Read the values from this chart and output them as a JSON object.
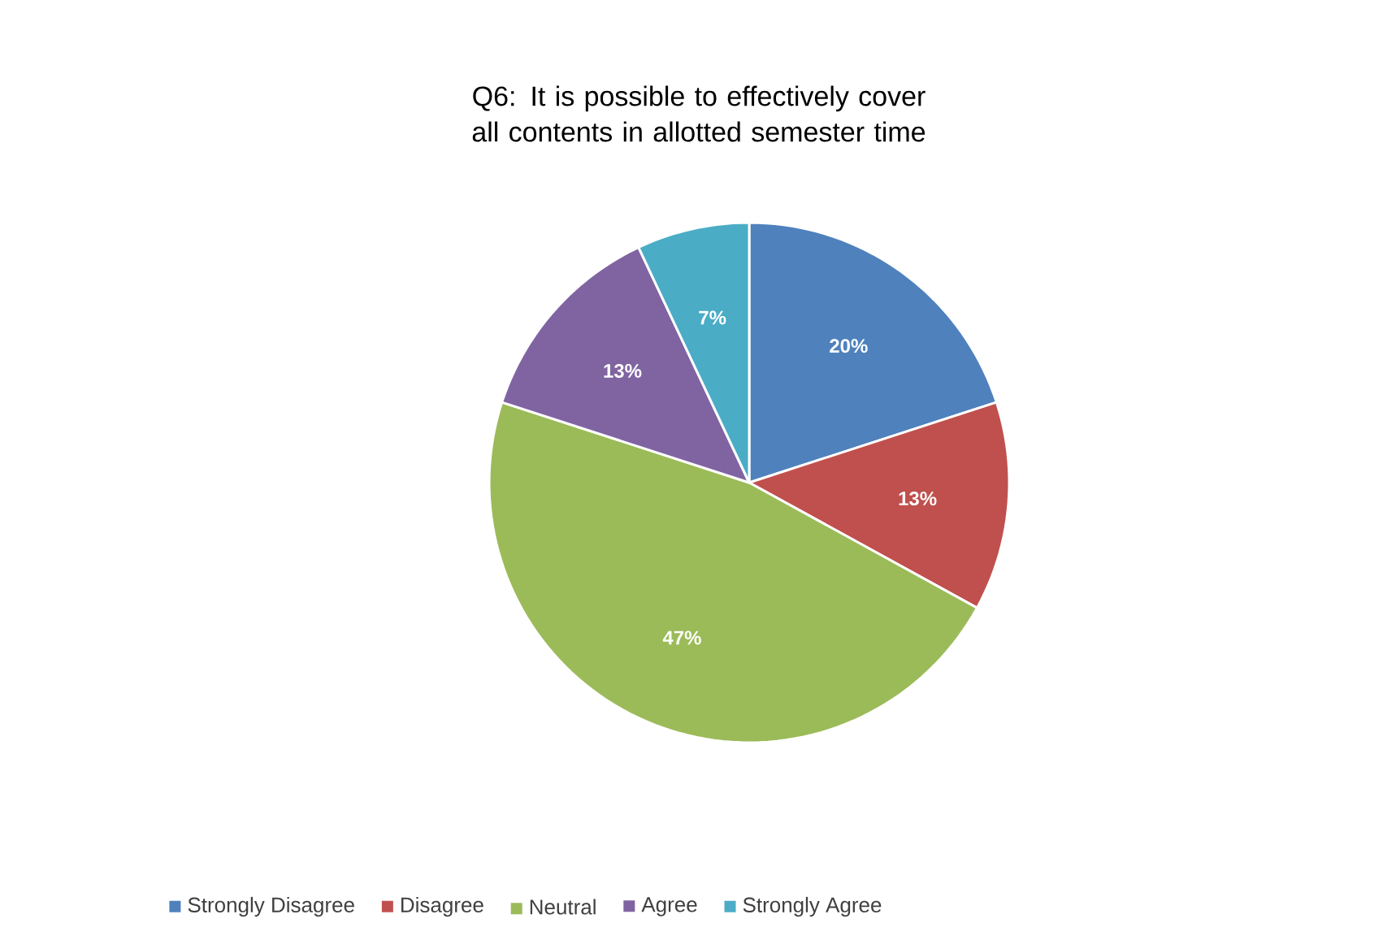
{
  "chart_data": {
    "type": "pie",
    "title": "Q6: It is possible to effectively cover all contents in allotted semester time",
    "categories": [
      "Strongly Disagree",
      "Disagree",
      "Neutral",
      "Agree",
      "Strongly Agree"
    ],
    "values": [
      20,
      13,
      47,
      13,
      7
    ],
    "colors": [
      "#4f81bd",
      "#c0504d",
      "#9bbb59",
      "#8064a2",
      "#4bacc6"
    ],
    "value_labels": [
      "20%",
      "13%",
      "47%",
      "13%",
      "7%"
    ],
    "legend": "bottom"
  }
}
